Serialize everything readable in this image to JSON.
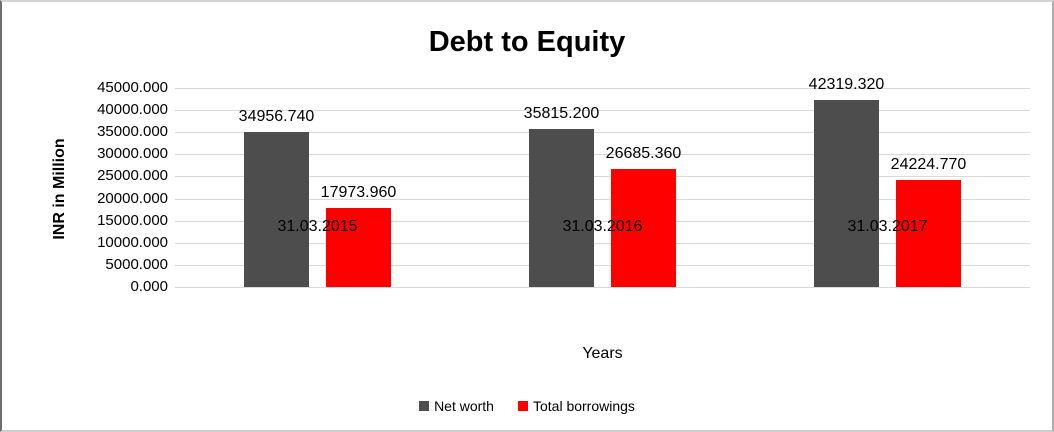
{
  "chart_data": {
    "type": "bar",
    "title": "Debt to Equity",
    "xlabel": "Years",
    "ylabel": "INR in Million",
    "categories": [
      "31.03.2015",
      "31.03.2016",
      "31.03.2017"
    ],
    "series": [
      {
        "name": "Net worth",
        "color": "#4d4d4d",
        "values": [
          34956.74,
          35815.2,
          42319.32
        ],
        "labels": [
          "34956.740",
          "35815.200",
          "42319.320"
        ]
      },
      {
        "name": "Total borrowings",
        "color": "#ff0000",
        "values": [
          17973.96,
          26685.36,
          24224.77
        ],
        "labels": [
          "17973.960",
          "26685.360",
          "24224.770"
        ]
      }
    ],
    "ylim": [
      0,
      45000
    ],
    "ytick_step": 5000,
    "yticks": [
      "45000.000",
      "40000.000",
      "35000.000",
      "30000.000",
      "25000.000",
      "20000.000",
      "15000.000",
      "10000.000",
      "5000.000",
      "0.000"
    ],
    "grid": true,
    "legend_position": "bottom",
    "colors": {
      "background": "#ffffff",
      "gridline": "#d9d9d9",
      "text": "#000000"
    }
  }
}
